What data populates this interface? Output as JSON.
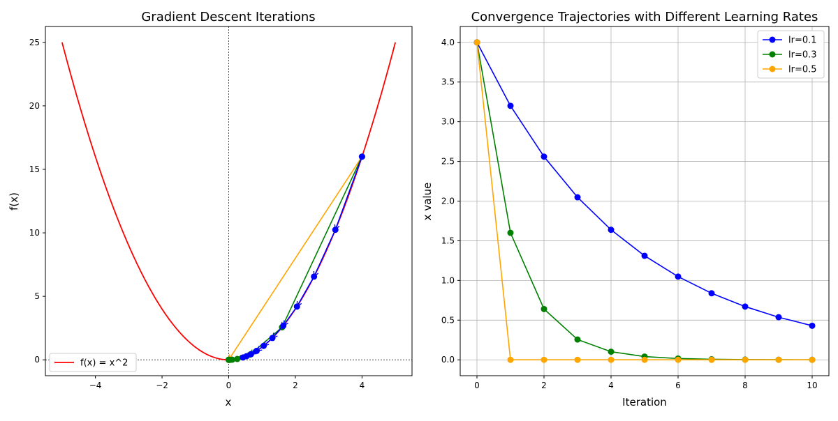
{
  "chart_data": [
    {
      "type": "line",
      "title": "Gradient Descent Iterations",
      "xlabel": "x",
      "ylabel": "f(x)",
      "xlim": [
        -5.5,
        5.5
      ],
      "ylim": [
        -1.25,
        26.25
      ],
      "xticks": [
        -4,
        -2,
        0,
        2,
        4
      ],
      "xtick_labels": [
        "−4",
        "−2",
        "0",
        "2",
        "4"
      ],
      "yticks": [
        0,
        5,
        10,
        15,
        20,
        25
      ],
      "ytick_labels": [
        "0",
        "5",
        "10",
        "15",
        "20",
        "25"
      ],
      "grid": false,
      "legend": "lower-left",
      "reference_lines": {
        "x": 0,
        "y": 0,
        "style": "dotted"
      },
      "function": {
        "name": "f(x) = x^2",
        "x_range": [
          -5,
          5
        ],
        "color": "#ff0000"
      },
      "series": [
        {
          "x": [
            4,
            3.2,
            2.56,
            2.048,
            1.6384,
            1.31072,
            1.048576,
            0.8388608,
            0.67108864,
            0.536870912,
            0.4294967296
          ],
          "color": "#0000ff"
        },
        {
          "x": [
            4,
            1.6,
            0.64,
            0.256,
            0.1024,
            0.04096,
            0.016384,
            0.0065536,
            0.00262144,
            0.001048576,
            0.0004194304
          ],
          "color": "#008000"
        },
        {
          "x": [
            4,
            0,
            0,
            0,
            0,
            0,
            0,
            0,
            0,
            0,
            0
          ],
          "color": "#ffa500"
        }
      ]
    },
    {
      "type": "line",
      "title": "Convergence Trajectories with Different Learning Rates",
      "xlabel": "Iteration",
      "ylabel": "x value",
      "xlim": [
        -0.5,
        10.5
      ],
      "ylim": [
        -0.2,
        4.2
      ],
      "xticks": [
        0,
        2,
        4,
        6,
        8,
        10
      ],
      "xtick_labels": [
        "0",
        "2",
        "4",
        "6",
        "8",
        "10"
      ],
      "yticks": [
        0,
        0.5,
        1,
        1.5,
        2,
        2.5,
        3,
        3.5,
        4
      ],
      "ytick_labels": [
        "0.0",
        "0.5",
        "1.0",
        "1.5",
        "2.0",
        "2.5",
        "3.0",
        "3.5",
        "4.0"
      ],
      "grid": true,
      "legend": "top-right",
      "x": [
        0,
        1,
        2,
        3,
        4,
        5,
        6,
        7,
        8,
        9,
        10
      ],
      "series": [
        {
          "name": "lr=0.1",
          "values": [
            4,
            3.2,
            2.56,
            2.048,
            1.6384,
            1.31072,
            1.048576,
            0.8388608,
            0.67108864,
            0.536870912,
            0.4294967296
          ],
          "color": "#0000ff"
        },
        {
          "name": "lr=0.3",
          "values": [
            4,
            1.6,
            0.64,
            0.256,
            0.1024,
            0.04096,
            0.016384,
            0.0065536,
            0.00262144,
            0.001048576,
            0.0004194304
          ],
          "color": "#008000"
        },
        {
          "name": "lr=0.5",
          "values": [
            4,
            0,
            0,
            0,
            0,
            0,
            0,
            0,
            0,
            0,
            0
          ],
          "color": "#ffa500"
        }
      ]
    }
  ]
}
